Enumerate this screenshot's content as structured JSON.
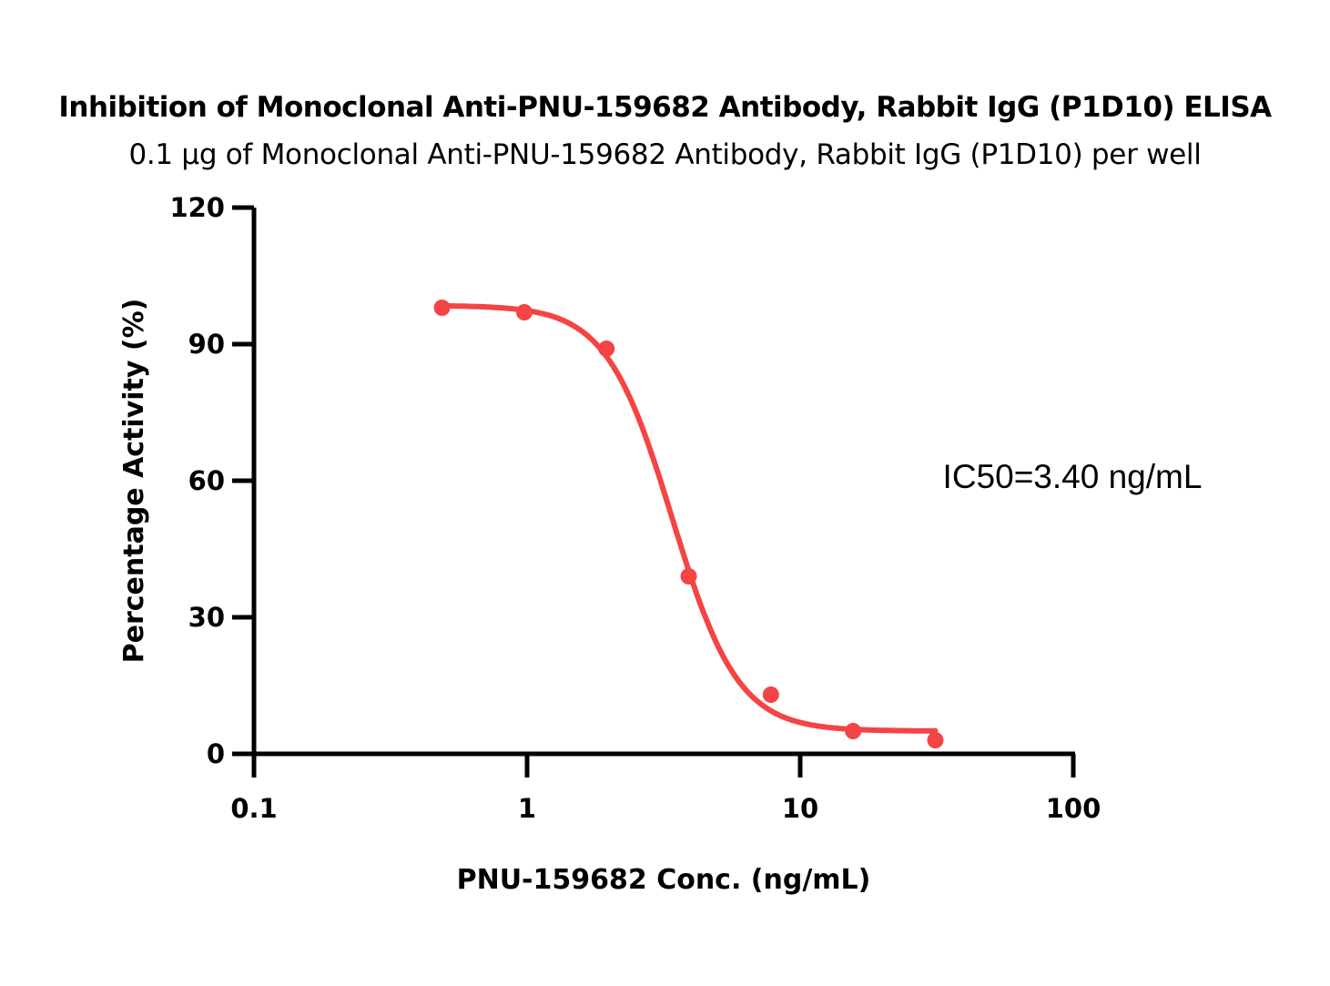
{
  "chart_data": {
    "type": "scatter",
    "title": "Inhibition of Monoclonal Anti-PNU-159682 Antibody, Rabbit IgG (P1D10) ELISA",
    "subtitle": "0.1 µg of Monoclonal Anti-PNU-159682 Antibody, Rabbit IgG (P1D10) per well",
    "xlabel": "PNU-159682 Conc. (ng/mL)",
    "ylabel": "Percentage Activity (%)",
    "xscale": "log",
    "xlim": [
      0.1,
      100
    ],
    "ylim": [
      0,
      120
    ],
    "xticks": [
      "0.1",
      "1",
      "10",
      "100"
    ],
    "xtick_values": [
      0.1,
      1,
      10,
      100
    ],
    "yticks": [
      "0",
      "30",
      "60",
      "90",
      "120"
    ],
    "ytick_values": [
      0,
      30,
      60,
      90,
      120
    ],
    "grid": false,
    "color": "#f44444",
    "series": [
      {
        "name": "P1D10",
        "x": [
          0.488,
          0.977,
          1.953,
          3.906,
          7.813,
          15.625,
          31.25
        ],
        "y": [
          98,
          97,
          89,
          39,
          13,
          5,
          3
        ],
        "fit": {
          "model": "4PL",
          "top": 98.5,
          "bottom": 5,
          "ic50": 3.4,
          "hill": 3.6
        }
      }
    ],
    "annotation": "IC50=3.40 ng/mL"
  }
}
